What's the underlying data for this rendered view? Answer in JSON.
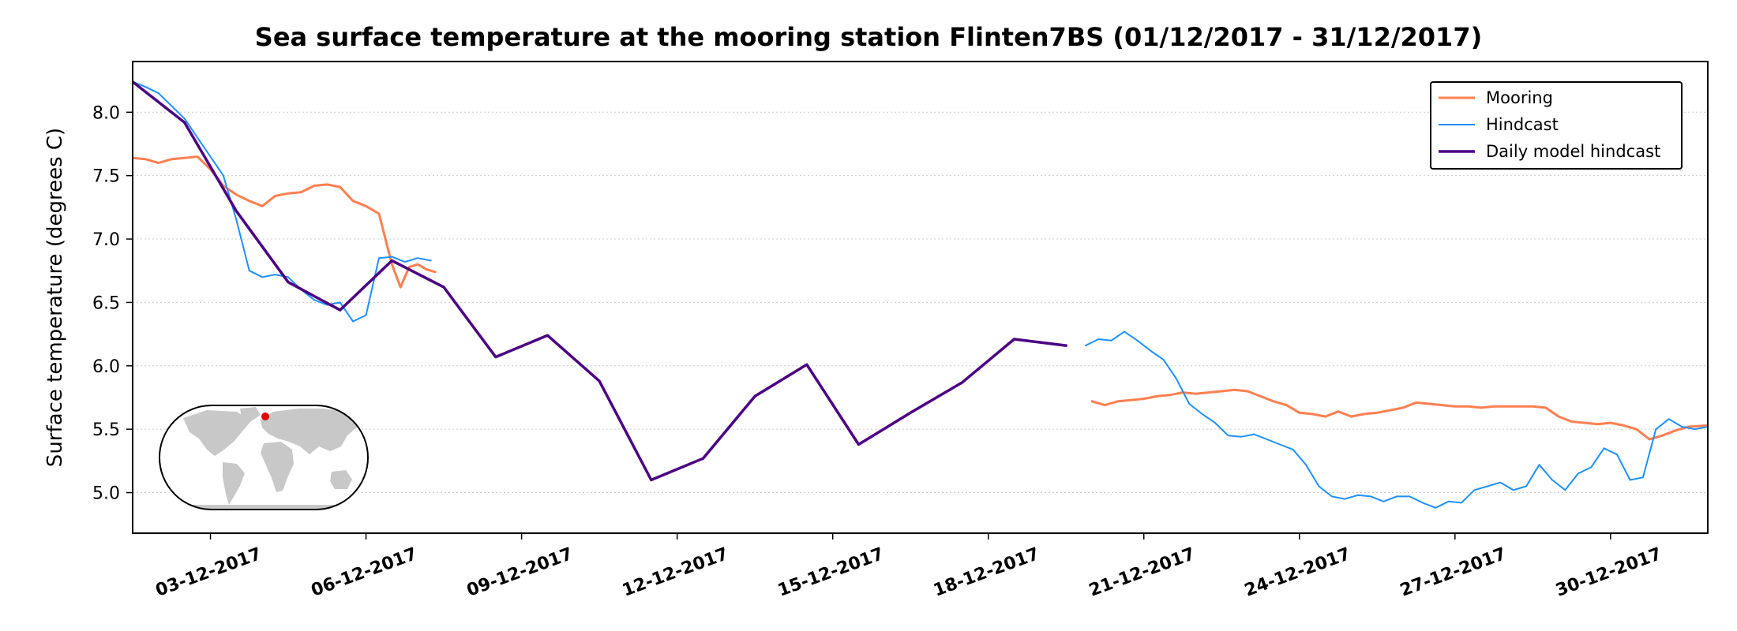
{
  "colors": {
    "mooring": "#ff7f50",
    "hindcast": "#1e90ff",
    "daily": "#4b0082",
    "grid": "#cccccc",
    "land": "#c8c8c8",
    "station_marker": "#e00000"
  },
  "chart_data": {
    "type": "line",
    "title": "Sea surface temperature at the mooring station Flinten7BS (01/12/2017 - 31/12/2017)",
    "ylabel": "Surface temperature (degrees C)",
    "xlabel": "",
    "xlim": [
      "2017-12-01T12:00",
      "2017-12-31T21:00"
    ],
    "ylim": [
      4.68,
      8.4
    ],
    "yticks": [
      5.0,
      5.5,
      6.0,
      6.5,
      7.0,
      7.5,
      8.0
    ],
    "ytick_labels": [
      "5.0",
      "5.5",
      "6.0",
      "6.5",
      "7.0",
      "7.5",
      "8.0"
    ],
    "xticks": [
      "2017-12-03",
      "2017-12-06",
      "2017-12-09",
      "2017-12-12",
      "2017-12-15",
      "2017-12-18",
      "2017-12-21",
      "2017-12-24",
      "2017-12-27",
      "2017-12-30"
    ],
    "xtick_labels": [
      "03-12-2017",
      "06-12-2017",
      "09-12-2017",
      "12-12-2017",
      "15-12-2017",
      "18-12-2017",
      "21-12-2017",
      "24-12-2017",
      "27-12-2017",
      "30-12-2017"
    ],
    "grid": "horizontal dotted",
    "legend_position": "top-right",
    "inset_map": "world map with station marker",
    "series": [
      {
        "name": "Mooring",
        "segments": [
          [
            [
              "2017-12-01T12:00",
              7.64
            ],
            [
              "2017-12-01T18:00",
              7.63
            ],
            [
              "2017-12-02T00:00",
              7.6
            ],
            [
              "2017-12-02T06:00",
              7.63
            ],
            [
              "2017-12-02T12:00",
              7.64
            ],
            [
              "2017-12-02T18:00",
              7.65
            ],
            [
              "2017-12-03T00:00",
              7.55
            ],
            [
              "2017-12-03T06:00",
              7.42
            ],
            [
              "2017-12-03T12:00",
              7.35
            ],
            [
              "2017-12-03T18:00",
              7.3
            ],
            [
              "2017-12-04T00:00",
              7.26
            ],
            [
              "2017-12-04T06:00",
              7.34
            ],
            [
              "2017-12-04T12:00",
              7.36
            ],
            [
              "2017-12-04T18:00",
              7.37
            ],
            [
              "2017-12-05T00:00",
              7.42
            ],
            [
              "2017-12-05T06:00",
              7.43
            ],
            [
              "2017-12-05T12:00",
              7.41
            ],
            [
              "2017-12-05T18:00",
              7.3
            ],
            [
              "2017-12-06T00:00",
              7.26
            ],
            [
              "2017-12-06T06:00",
              7.2
            ],
            [
              "2017-12-06T09:00",
              7.0
            ],
            [
              "2017-12-06T12:00",
              6.8
            ],
            [
              "2017-12-06T16:00",
              6.62
            ],
            [
              "2017-12-06T20:00",
              6.78
            ],
            [
              "2017-12-07T00:00",
              6.8
            ],
            [
              "2017-12-07T04:00",
              6.76
            ],
            [
              "2017-12-07T08:00",
              6.74
            ]
          ],
          [
            [
              "2017-12-20T00:00",
              5.72
            ],
            [
              "2017-12-20T06:00",
              5.69
            ],
            [
              "2017-12-20T12:00",
              5.72
            ],
            [
              "2017-12-20T18:00",
              5.73
            ],
            [
              "2017-12-21T00:00",
              5.74
            ],
            [
              "2017-12-21T06:00",
              5.76
            ],
            [
              "2017-12-21T12:00",
              5.77
            ],
            [
              "2017-12-21T18:00",
              5.79
            ],
            [
              "2017-12-22T00:00",
              5.78
            ],
            [
              "2017-12-22T06:00",
              5.79
            ],
            [
              "2017-12-22T12:00",
              5.8
            ],
            [
              "2017-12-22T18:00",
              5.81
            ],
            [
              "2017-12-23T00:00",
              5.8
            ],
            [
              "2017-12-23T06:00",
              5.76
            ],
            [
              "2017-12-23T12:00",
              5.72
            ],
            [
              "2017-12-23T18:00",
              5.69
            ],
            [
              "2017-12-24T00:00",
              5.63
            ],
            [
              "2017-12-24T06:00",
              5.62
            ],
            [
              "2017-12-24T12:00",
              5.6
            ],
            [
              "2017-12-24T18:00",
              5.64
            ],
            [
              "2017-12-25T00:00",
              5.6
            ],
            [
              "2017-12-25T06:00",
              5.62
            ],
            [
              "2017-12-25T12:00",
              5.63
            ],
            [
              "2017-12-25T18:00",
              5.65
            ],
            [
              "2017-12-26T00:00",
              5.67
            ],
            [
              "2017-12-26T06:00",
              5.71
            ],
            [
              "2017-12-26T12:00",
              5.7
            ],
            [
              "2017-12-26T18:00",
              5.69
            ],
            [
              "2017-12-27T00:00",
              5.68
            ],
            [
              "2017-12-27T06:00",
              5.68
            ],
            [
              "2017-12-27T12:00",
              5.67
            ],
            [
              "2017-12-27T18:00",
              5.68
            ],
            [
              "2017-12-28T00:00",
              5.68
            ],
            [
              "2017-12-28T06:00",
              5.68
            ],
            [
              "2017-12-28T12:00",
              5.68
            ],
            [
              "2017-12-28T18:00",
              5.67
            ],
            [
              "2017-12-29T00:00",
              5.6
            ],
            [
              "2017-12-29T06:00",
              5.56
            ],
            [
              "2017-12-29T12:00",
              5.55
            ],
            [
              "2017-12-29T18:00",
              5.54
            ],
            [
              "2017-12-30T00:00",
              5.55
            ],
            [
              "2017-12-30T06:00",
              5.53
            ],
            [
              "2017-12-30T12:00",
              5.5
            ],
            [
              "2017-12-30T18:00",
              5.42
            ],
            [
              "2017-12-31T00:00",
              5.45
            ],
            [
              "2017-12-31T06:00",
              5.49
            ],
            [
              "2017-12-31T12:00",
              5.52
            ],
            [
              "2017-12-31T21:00",
              5.53
            ]
          ]
        ]
      },
      {
        "name": "Hindcast",
        "segments": [
          [
            [
              "2017-12-01T12:00",
              8.24
            ],
            [
              "2017-12-01T18:00",
              8.2
            ],
            [
              "2017-12-02T00:00",
              8.15
            ],
            [
              "2017-12-02T06:00",
              8.05
            ],
            [
              "2017-12-02T12:00",
              7.95
            ],
            [
              "2017-12-02T18:00",
              7.8
            ],
            [
              "2017-12-03T00:00",
              7.65
            ],
            [
              "2017-12-03T06:00",
              7.5
            ],
            [
              "2017-12-03T12:00",
              7.15
            ],
            [
              "2017-12-03T18:00",
              6.75
            ],
            [
              "2017-12-04T00:00",
              6.7
            ],
            [
              "2017-12-04T06:00",
              6.72
            ],
            [
              "2017-12-04T12:00",
              6.7
            ],
            [
              "2017-12-04T18:00",
              6.6
            ],
            [
              "2017-12-05T00:00",
              6.52
            ],
            [
              "2017-12-05T06:00",
              6.48
            ],
            [
              "2017-12-05T12:00",
              6.5
            ],
            [
              "2017-12-05T18:00",
              6.35
            ],
            [
              "2017-12-06T00:00",
              6.4
            ],
            [
              "2017-12-06T06:00",
              6.85
            ],
            [
              "2017-12-06T12:00",
              6.86
            ],
            [
              "2017-12-06T18:00",
              6.82
            ],
            [
              "2017-12-07T00:00",
              6.85
            ],
            [
              "2017-12-07T06:00",
              6.83
            ]
          ],
          [
            [
              "2017-12-19T21:00",
              6.16
            ],
            [
              "2017-12-20T03:00",
              6.21
            ],
            [
              "2017-12-20T09:00",
              6.2
            ],
            [
              "2017-12-20T15:00",
              6.27
            ],
            [
              "2017-12-20T21:00",
              6.2
            ],
            [
              "2017-12-21T03:00",
              6.12
            ],
            [
              "2017-12-21T09:00",
              6.05
            ],
            [
              "2017-12-21T15:00",
              5.9
            ],
            [
              "2017-12-21T21:00",
              5.7
            ],
            [
              "2017-12-22T03:00",
              5.62
            ],
            [
              "2017-12-22T09:00",
              5.55
            ],
            [
              "2017-12-22T15:00",
              5.45
            ],
            [
              "2017-12-22T21:00",
              5.44
            ],
            [
              "2017-12-23T03:00",
              5.46
            ],
            [
              "2017-12-23T09:00",
              5.42
            ],
            [
              "2017-12-23T15:00",
              5.38
            ],
            [
              "2017-12-23T21:00",
              5.34
            ],
            [
              "2017-12-24T03:00",
              5.22
            ],
            [
              "2017-12-24T09:00",
              5.05
            ],
            [
              "2017-12-24T15:00",
              4.97
            ],
            [
              "2017-12-24T21:00",
              4.95
            ],
            [
              "2017-12-25T03:00",
              4.98
            ],
            [
              "2017-12-25T09:00",
              4.97
            ],
            [
              "2017-12-25T15:00",
              4.93
            ],
            [
              "2017-12-25T21:00",
              4.97
            ],
            [
              "2017-12-26T03:00",
              4.97
            ],
            [
              "2017-12-26T09:00",
              4.92
            ],
            [
              "2017-12-26T15:00",
              4.88
            ],
            [
              "2017-12-26T21:00",
              4.93
            ],
            [
              "2017-12-27T03:00",
              4.92
            ],
            [
              "2017-12-27T09:00",
              5.02
            ],
            [
              "2017-12-27T15:00",
              5.05
            ],
            [
              "2017-12-27T21:00",
              5.08
            ],
            [
              "2017-12-28T03:00",
              5.02
            ],
            [
              "2017-12-28T09:00",
              5.05
            ],
            [
              "2017-12-28T15:00",
              5.22
            ],
            [
              "2017-12-28T21:00",
              5.1
            ],
            [
              "2017-12-29T03:00",
              5.02
            ],
            [
              "2017-12-29T09:00",
              5.15
            ],
            [
              "2017-12-29T15:00",
              5.2
            ],
            [
              "2017-12-29T21:00",
              5.35
            ],
            [
              "2017-12-30T03:00",
              5.3
            ],
            [
              "2017-12-30T09:00",
              5.1
            ],
            [
              "2017-12-30T15:00",
              5.12
            ],
            [
              "2017-12-30T21:00",
              5.5
            ],
            [
              "2017-12-31T03:00",
              5.58
            ],
            [
              "2017-12-31T09:00",
              5.52
            ],
            [
              "2017-12-31T15:00",
              5.5
            ],
            [
              "2017-12-31T21:00",
              5.52
            ]
          ]
        ]
      },
      {
        "name": "Daily model hindcast",
        "segments": [
          [
            [
              "2017-12-01T12:00",
              8.24
            ],
            [
              "2017-12-02T12:00",
              7.92
            ],
            [
              "2017-12-03T12:00",
              7.22
            ],
            [
              "2017-12-04T12:00",
              6.66
            ],
            [
              "2017-12-05T12:00",
              6.44
            ],
            [
              "2017-12-06T12:00",
              6.83
            ],
            [
              "2017-12-07T12:00",
              6.62
            ],
            [
              "2017-12-08T12:00",
              6.07
            ],
            [
              "2017-12-09T12:00",
              6.24
            ],
            [
              "2017-12-10T12:00",
              5.88
            ],
            [
              "2017-12-11T12:00",
              5.1
            ],
            [
              "2017-12-12T12:00",
              5.27
            ],
            [
              "2017-12-13T12:00",
              5.76
            ],
            [
              "2017-12-14T12:00",
              6.01
            ],
            [
              "2017-12-15T12:00",
              5.38
            ],
            [
              "2017-12-16T12:00",
              5.63
            ],
            [
              "2017-12-17T12:00",
              5.87
            ],
            [
              "2017-12-18T12:00",
              6.21
            ],
            [
              "2017-12-19T12:00",
              6.16
            ]
          ]
        ]
      }
    ]
  }
}
